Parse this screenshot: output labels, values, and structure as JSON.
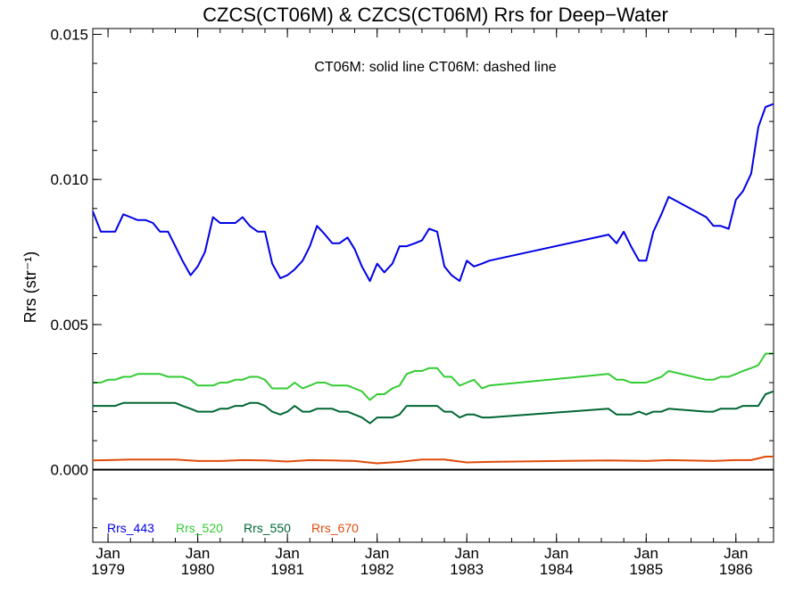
{
  "chart_data": {
    "type": "line",
    "title": "CZCS(CT06M) & CZCS(CT06M)  Rrs for Deep−Water",
    "annotation": "CT06M: solid line   CT06M: dashed line",
    "ylabel": "Rrs (str⁻¹)",
    "xlabel": "",
    "xlim": [
      1978.83,
      1986.42
    ],
    "ylim": [
      -0.0025,
      0.0152
    ],
    "y_ticks": [
      {
        "value": 0.0,
        "label": "0.000"
      },
      {
        "value": 0.005,
        "label": "0.005"
      },
      {
        "value": 0.01,
        "label": "0.010"
      },
      {
        "value": 0.015,
        "label": "0.015"
      }
    ],
    "x_ticks": [
      {
        "value": 1979.0,
        "month": "Jan",
        "year": "1979"
      },
      {
        "value": 1980.0,
        "month": "Jan",
        "year": "1980"
      },
      {
        "value": 1981.0,
        "month": "Jan",
        "year": "1981"
      },
      {
        "value": 1982.0,
        "month": "Jan",
        "year": "1982"
      },
      {
        "value": 1983.0,
        "month": "Jan",
        "year": "1983"
      },
      {
        "value": 1984.0,
        "month": "Jan",
        "year": "1984"
      },
      {
        "value": 1985.0,
        "month": "Jan",
        "year": "1985"
      },
      {
        "value": 1986.0,
        "month": "Jan",
        "year": "1986"
      }
    ],
    "zero_line": 0.0,
    "grid": false,
    "legend_position": "bottom-left",
    "series": [
      {
        "name": "Rrs_443",
        "color": "#0000e6",
        "x": [
          1978.83,
          1978.92,
          1979.0,
          1979.08,
          1979.17,
          1979.25,
          1979.33,
          1979.42,
          1979.5,
          1979.58,
          1979.67,
          1979.75,
          1979.83,
          1979.92,
          1980.0,
          1980.08,
          1980.17,
          1980.25,
          1980.33,
          1980.42,
          1980.5,
          1980.58,
          1980.67,
          1980.75,
          1980.83,
          1980.92,
          1981.0,
          1981.08,
          1981.17,
          1981.25,
          1981.33,
          1981.42,
          1981.5,
          1981.58,
          1981.67,
          1981.75,
          1981.83,
          1981.92,
          1982.0,
          1982.08,
          1982.17,
          1982.25,
          1982.33,
          1982.42,
          1982.5,
          1982.58,
          1982.67,
          1982.75,
          1982.83,
          1982.92,
          1983.0,
          1983.08,
          1983.17,
          1983.25,
          1984.58,
          1984.67,
          1984.75,
          1984.83,
          1984.92,
          1985.0,
          1985.08,
          1985.17,
          1985.25,
          1985.67,
          1985.75,
          1985.83,
          1985.92,
          1986.0,
          1986.08,
          1986.17,
          1986.25,
          1986.33,
          1986.42
        ],
        "y": [
          0.0089,
          0.0082,
          0.0082,
          0.0082,
          0.0088,
          0.0087,
          0.0086,
          0.0086,
          0.0085,
          0.0082,
          0.0082,
          0.0077,
          0.0072,
          0.0067,
          0.007,
          0.0075,
          0.0087,
          0.0085,
          0.0085,
          0.0085,
          0.0087,
          0.0084,
          0.0082,
          0.0082,
          0.0071,
          0.0066,
          0.0067,
          0.0069,
          0.0072,
          0.0077,
          0.0084,
          0.0081,
          0.0078,
          0.0078,
          0.008,
          0.0076,
          0.007,
          0.0065,
          0.0071,
          0.0068,
          0.0071,
          0.0077,
          0.0077,
          0.0078,
          0.0079,
          0.0083,
          0.0082,
          0.007,
          0.0067,
          0.0065,
          0.0072,
          0.007,
          0.0071,
          0.0072,
          0.0081,
          0.0078,
          0.0082,
          0.0077,
          0.0072,
          0.0072,
          0.0082,
          0.0088,
          0.0094,
          0.0087,
          0.0084,
          0.0084,
          0.0083,
          0.0093,
          0.0096,
          0.0102,
          0.0118,
          0.0125,
          0.0126
        ]
      },
      {
        "name": "Rrs_520",
        "color": "#33cc33",
        "x": [
          1978.83,
          1978.92,
          1979.0,
          1979.08,
          1979.17,
          1979.25,
          1979.33,
          1979.42,
          1979.5,
          1979.58,
          1979.67,
          1979.75,
          1979.83,
          1979.92,
          1980.0,
          1980.08,
          1980.17,
          1980.25,
          1980.33,
          1980.42,
          1980.5,
          1980.58,
          1980.67,
          1980.75,
          1980.83,
          1980.92,
          1981.0,
          1981.08,
          1981.17,
          1981.25,
          1981.33,
          1981.42,
          1981.5,
          1981.58,
          1981.67,
          1981.75,
          1981.83,
          1981.92,
          1982.0,
          1982.08,
          1982.17,
          1982.25,
          1982.33,
          1982.42,
          1982.5,
          1982.58,
          1982.67,
          1982.75,
          1982.83,
          1982.92,
          1983.0,
          1983.08,
          1983.17,
          1983.25,
          1984.58,
          1984.67,
          1984.75,
          1984.83,
          1984.92,
          1985.0,
          1985.08,
          1985.17,
          1985.25,
          1985.67,
          1985.75,
          1985.83,
          1985.92,
          1986.0,
          1986.08,
          1986.17,
          1986.25,
          1986.33,
          1986.42
        ],
        "y": [
          0.003,
          0.003,
          0.0031,
          0.0031,
          0.0032,
          0.0032,
          0.0033,
          0.0033,
          0.0033,
          0.0033,
          0.0032,
          0.0032,
          0.0032,
          0.0031,
          0.0029,
          0.0029,
          0.0029,
          0.003,
          0.003,
          0.0031,
          0.0031,
          0.0032,
          0.0032,
          0.0031,
          0.0028,
          0.0028,
          0.0028,
          0.003,
          0.0028,
          0.0029,
          0.003,
          0.003,
          0.0029,
          0.0029,
          0.0029,
          0.0028,
          0.0027,
          0.0024,
          0.0026,
          0.0026,
          0.0028,
          0.0029,
          0.0033,
          0.0034,
          0.0034,
          0.0035,
          0.0035,
          0.0032,
          0.0032,
          0.0029,
          0.003,
          0.0031,
          0.0028,
          0.0029,
          0.0033,
          0.0031,
          0.0031,
          0.003,
          0.003,
          0.003,
          0.0031,
          0.0032,
          0.0034,
          0.0031,
          0.0031,
          0.0032,
          0.0032,
          0.0033,
          0.0034,
          0.0035,
          0.0036,
          0.004,
          0.004
        ]
      },
      {
        "name": "Rrs_550",
        "color": "#006633",
        "x": [
          1978.83,
          1978.92,
          1979.0,
          1979.08,
          1979.17,
          1979.25,
          1979.33,
          1979.42,
          1979.5,
          1979.58,
          1979.67,
          1979.75,
          1979.83,
          1979.92,
          1980.0,
          1980.08,
          1980.17,
          1980.25,
          1980.33,
          1980.42,
          1980.5,
          1980.58,
          1980.67,
          1980.75,
          1980.83,
          1980.92,
          1981.0,
          1981.08,
          1981.17,
          1981.25,
          1981.33,
          1981.42,
          1981.5,
          1981.58,
          1981.67,
          1981.75,
          1981.83,
          1981.92,
          1982.0,
          1982.08,
          1982.17,
          1982.25,
          1982.33,
          1982.42,
          1982.5,
          1982.58,
          1982.67,
          1982.75,
          1982.83,
          1982.92,
          1983.0,
          1983.08,
          1983.17,
          1983.25,
          1984.58,
          1984.67,
          1984.75,
          1984.83,
          1984.92,
          1985.0,
          1985.08,
          1985.17,
          1985.25,
          1985.67,
          1985.75,
          1985.83,
          1985.92,
          1986.0,
          1986.08,
          1986.17,
          1986.25,
          1986.33,
          1986.42
        ],
        "y": [
          0.0022,
          0.0022,
          0.0022,
          0.0022,
          0.0023,
          0.0023,
          0.0023,
          0.0023,
          0.0023,
          0.0023,
          0.0023,
          0.0023,
          0.0022,
          0.0021,
          0.002,
          0.002,
          0.002,
          0.0021,
          0.0021,
          0.0022,
          0.0022,
          0.0023,
          0.0023,
          0.0022,
          0.002,
          0.0019,
          0.002,
          0.0022,
          0.002,
          0.002,
          0.0021,
          0.0021,
          0.0021,
          0.002,
          0.002,
          0.0019,
          0.0018,
          0.0016,
          0.0018,
          0.0018,
          0.0018,
          0.0019,
          0.0022,
          0.0022,
          0.0022,
          0.0022,
          0.0022,
          0.002,
          0.002,
          0.0018,
          0.0019,
          0.0019,
          0.0018,
          0.0018,
          0.0021,
          0.0019,
          0.0019,
          0.0019,
          0.002,
          0.0019,
          0.002,
          0.002,
          0.0021,
          0.002,
          0.002,
          0.0021,
          0.0021,
          0.0021,
          0.0022,
          0.0022,
          0.0022,
          0.0026,
          0.0027
        ]
      },
      {
        "name": "Rrs_670",
        "color": "#e04a0a",
        "x": [
          1978.83,
          1979.0,
          1979.25,
          1979.5,
          1979.75,
          1980.0,
          1980.25,
          1980.5,
          1980.75,
          1981.0,
          1981.25,
          1981.5,
          1981.75,
          1982.0,
          1982.25,
          1982.5,
          1982.75,
          1983.0,
          1983.25,
          1984.58,
          1985.0,
          1985.25,
          1985.75,
          1986.0,
          1986.17,
          1986.33,
          1986.42
        ],
        "y": [
          0.00032,
          0.00033,
          0.00035,
          0.00035,
          0.00035,
          0.0003,
          0.0003,
          0.00033,
          0.00032,
          0.00028,
          0.00033,
          0.00032,
          0.0003,
          0.00022,
          0.00027,
          0.00035,
          0.00035,
          0.00025,
          0.00027,
          0.00032,
          0.0003,
          0.00033,
          0.0003,
          0.00033,
          0.00033,
          0.00045,
          0.00045
        ]
      }
    ]
  }
}
